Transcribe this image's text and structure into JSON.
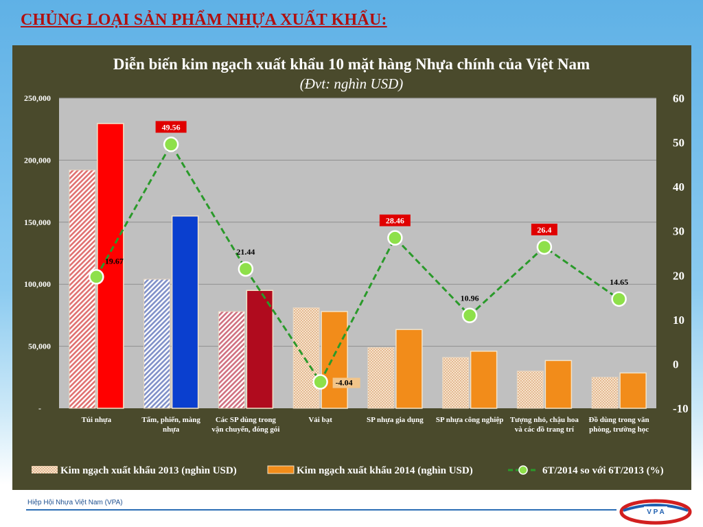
{
  "slide": {
    "title": "CHỦNG LOẠI SẢN PHẨM NHỰA XUẤT KHẨU:",
    "footer": "Hiệp Hội Nhựa Việt Nam (VPA)",
    "logo_text": "VPA"
  },
  "colors": {
    "title": "#b01010",
    "panel": "#4a4a2c",
    "plot": "#c0c0c0",
    "line": "#2a9a2a",
    "marker": "#8ee04a",
    "label_highlight": "#e00000"
  },
  "chart_data": {
    "type": "bar",
    "title": "Diễn biến kim ngạch xuất khẩu 10 mặt hàng Nhựa chính của Việt Nam",
    "subtitle": "(Đvt: nghìn USD)",
    "categories": [
      "Túi nhựa",
      "Tấm, phiến, màng nhựa",
      "Các SP dùng trong vận chuyển, đóng gói",
      "Vải bạt",
      "SP nhựa gia dụng",
      "SP nhựa công nghiệp",
      "Tượng nhỏ, chậu hoa và các đồ trang trí",
      "Đồ dùng trong văn phòng, trường học"
    ],
    "series": [
      {
        "name": "Kim ngạch xuất khẩu  2013 (nghìn USD)",
        "axis": "left",
        "kind": "bar",
        "values": [
          192000,
          104000,
          78000,
          81000,
          49000,
          41000,
          30000,
          25000
        ]
      },
      {
        "name": "Kim ngạch xuất khẩu  2014 (nghìn USD)",
        "axis": "left",
        "kind": "bar",
        "values": [
          229500,
          155000,
          95000,
          78000,
          63500,
          46000,
          38500,
          28500
        ]
      },
      {
        "name": "6T/2014 so với 6T/2013 (%)",
        "axis": "right",
        "kind": "line",
        "values": [
          19.67,
          49.56,
          21.44,
          -4.04,
          28.46,
          10.96,
          26.4,
          14.65
        ],
        "labels": [
          "19.67",
          "49.56",
          "21.44",
          "-4.04",
          "28.46",
          "10.96",
          "26.4",
          "14.65"
        ],
        "highlighted": [
          false,
          true,
          false,
          false,
          true,
          false,
          true,
          false
        ]
      }
    ],
    "bar_colors_2014": [
      "#ff0000",
      "#0a3fcf",
      "#b00b1e",
      "#f28c1a",
      "#f28c1a",
      "#f28c1a",
      "#f28c1a",
      "#f28c1a"
    ],
    "bar_colors_2013": [
      "#e07070",
      "#8090c8",
      "#d07080",
      "#f2d2a8",
      "#f2d2a8",
      "#f2d2a8",
      "#f2d2a8",
      "#f2d2a8"
    ],
    "y_left": {
      "ylim": [
        0,
        250000
      ],
      "ticks": [
        "-",
        "50,000",
        "100,000",
        "150,000",
        "200,000",
        "250,000"
      ]
    },
    "y_right": {
      "ylim": [
        -10,
        60
      ],
      "ticks": [
        "-10",
        "0",
        "10",
        "20",
        "30",
        "40",
        "50",
        "60"
      ]
    },
    "grid": true,
    "legend": "bottom"
  }
}
